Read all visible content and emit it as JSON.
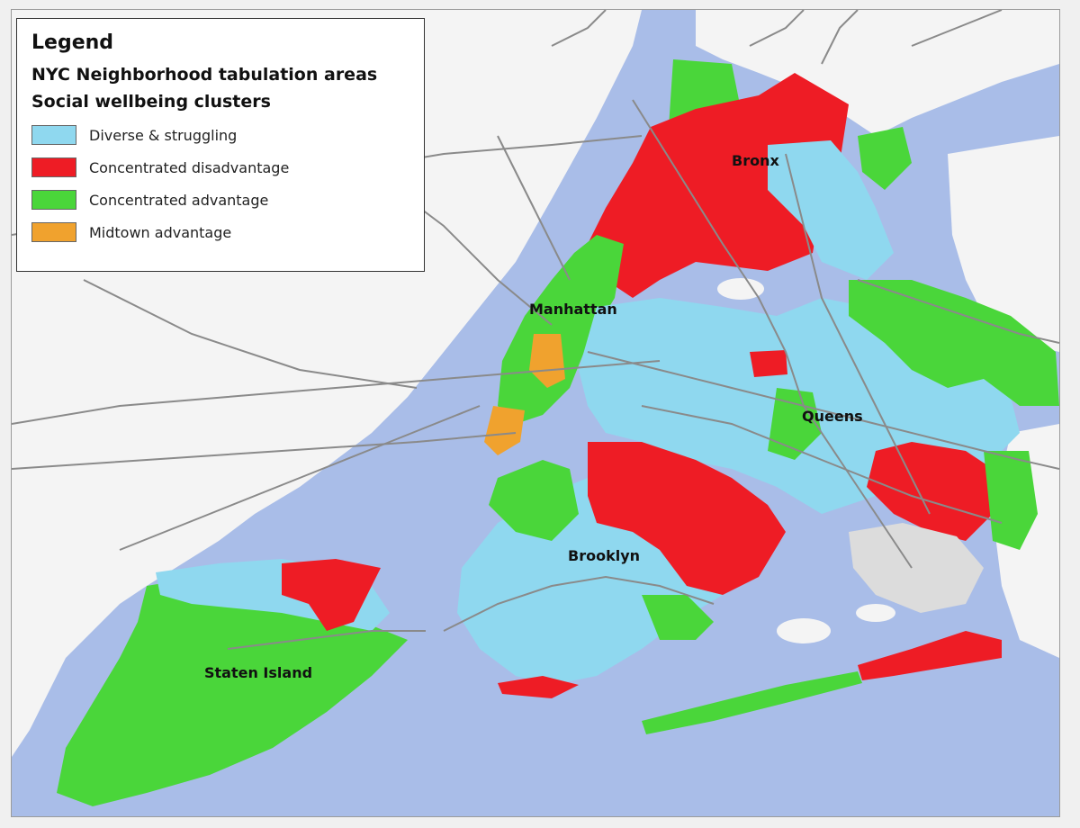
{
  "legend": {
    "title": "Legend",
    "subtitle": "NYC Neighborhood tabulation areas",
    "cluster_title": "Social wellbeing clusters",
    "items": [
      {
        "label": "Diverse & struggling",
        "color": "#8fd8ef"
      },
      {
        "label": "Concentrated disadvantage",
        "color": "#ee1c25"
      },
      {
        "label": "Concentrated advantage",
        "color": "#4ad63a"
      },
      {
        "label": "Midtown advantage",
        "color": "#f0a22e"
      }
    ]
  },
  "labels": {
    "bronx": "Bronx",
    "manhattan": "Manhattan",
    "queens": "Queens",
    "brooklyn": "Brooklyn",
    "staten_island": "Staten Island"
  },
  "colors": {
    "water": "#a9bde8",
    "land": "#f4f4f4",
    "road": "#8a8a8a",
    "park": "#dcdcdc"
  }
}
